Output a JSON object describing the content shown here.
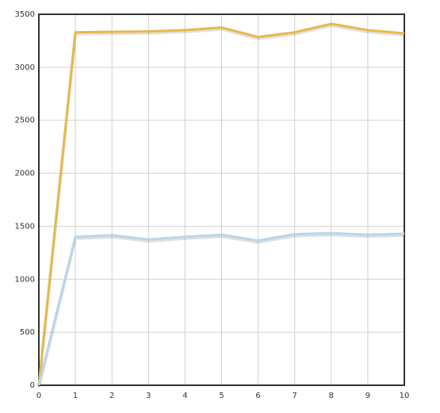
{
  "chart_data": {
    "type": "line",
    "x": [
      0,
      1,
      2,
      3,
      4,
      5,
      6,
      7,
      8,
      9,
      10
    ],
    "series": [
      {
        "color": "#e8b84a",
        "values": [
          0,
          3330,
          3335,
          3338,
          3350,
          3375,
          3285,
          3330,
          3410,
          3350,
          3320
        ]
      },
      {
        "color": "#b8d6ea",
        "values": [
          0,
          1400,
          1415,
          1375,
          1400,
          1420,
          1365,
          1425,
          1435,
          1420,
          1430
        ]
      }
    ],
    "xlim": [
      0,
      10
    ],
    "xticks": [
      0,
      1,
      2,
      3,
      4,
      5,
      6,
      7,
      8,
      9,
      10
    ],
    "ylim": [
      0,
      3500
    ],
    "yticks": [
      0,
      500,
      1000,
      1500,
      2000,
      2500,
      3000,
      3500
    ],
    "grid": true
  }
}
